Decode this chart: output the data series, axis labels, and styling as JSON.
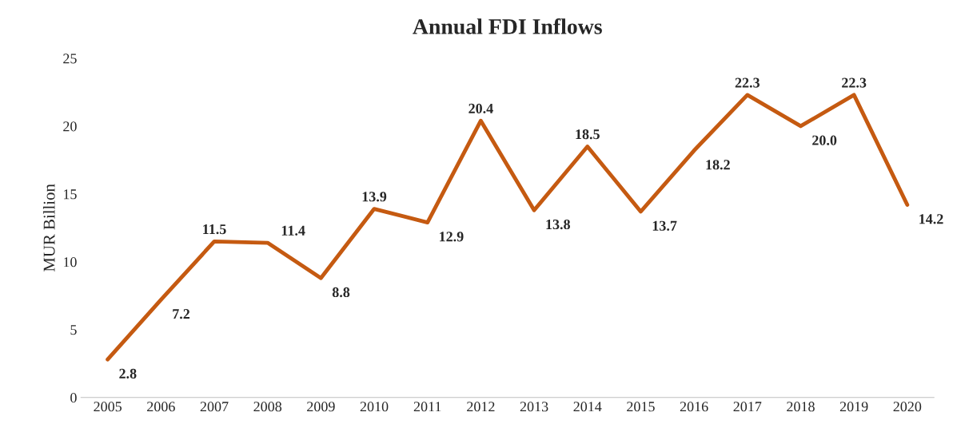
{
  "chart_data": {
    "type": "line",
    "title": "Annual FDI Inflows",
    "ylabel": "MUR Billion",
    "categories": [
      "2005",
      "2006",
      "2007",
      "2008",
      "2009",
      "2010",
      "2011",
      "2012",
      "2013",
      "2014",
      "2015",
      "2016",
      "2017",
      "2018",
      "2019",
      "2020"
    ],
    "series": [
      {
        "color": "#c55a11",
        "values": [
          2.8,
          7.2,
          11.5,
          11.4,
          8.8,
          13.9,
          12.9,
          20.4,
          13.8,
          18.5,
          13.7,
          18.2,
          22.3,
          20.0,
          22.3,
          14.2
        ],
        "value_labels": [
          "2.8",
          "7.2",
          "11.5",
          "11.4",
          "8.8",
          "13.9",
          "12.9",
          "20.4",
          "13.8",
          "18.5",
          "13.7",
          "18.2",
          "22.3",
          "20.0",
          "22.3",
          "14.2"
        ]
      }
    ],
    "ylim": [
      0,
      25
    ],
    "yticks": [
      0,
      5,
      10,
      15,
      20,
      25
    ],
    "marker": "none",
    "line_style": "solid"
  }
}
